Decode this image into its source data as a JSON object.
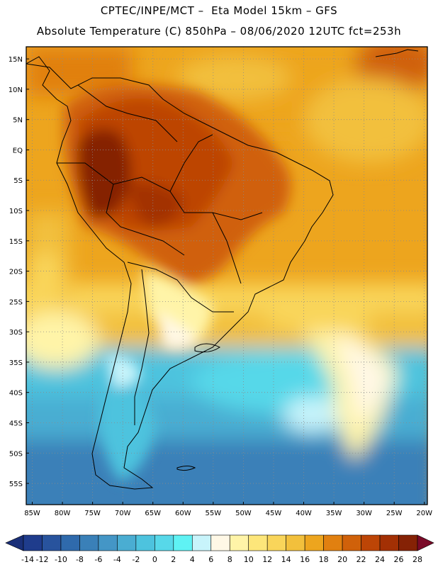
{
  "header": {
    "line1": "CPTEC/INPE/MCT –  Eta Model 15km – GFS",
    "line2": "Absolute Temperature (C) 850hPa – 08/06/2020 12UTC fct=253h"
  },
  "map": {
    "lat_labels": [
      "15N",
      "10N",
      "5N",
      "EQ",
      "5S",
      "10S",
      "15S",
      "20S",
      "25S",
      "30S",
      "35S",
      "40S",
      "45S",
      "50S",
      "55S"
    ],
    "lat_values": [
      15,
      10,
      5,
      0,
      -5,
      -10,
      -15,
      -20,
      -25,
      -30,
      -35,
      -40,
      -45,
      -50,
      -55
    ],
    "lon_labels": [
      "85W",
      "80W",
      "75W",
      "70W",
      "65W",
      "60W",
      "55W",
      "50W",
      "45W",
      "40W",
      "35W",
      "30W",
      "25W",
      "20W"
    ],
    "lon_values": [
      -85,
      -80,
      -75,
      -70,
      -65,
      -60,
      -55,
      -50,
      -45,
      -40,
      -35,
      -30,
      -25,
      -20
    ],
    "lat_range": [
      -58.5,
      17
    ],
    "lon_range": [
      -86,
      -19.5
    ]
  },
  "colorbar": {
    "labels": [
      "-14",
      "-12",
      "-10",
      "-8",
      "-6",
      "-4",
      "-2",
      "0",
      "2",
      "4",
      "6",
      "8",
      "10",
      "12",
      "14",
      "16",
      "18",
      "20",
      "22",
      "24",
      "26",
      "28"
    ],
    "colors": [
      "#1f3c8c",
      "#28539d",
      "#2f6aac",
      "#3a80b8",
      "#4496c6",
      "#4aadd2",
      "#4dc3de",
      "#57d8e9",
      "#5ff2f4",
      "#c8f4fb",
      "#fff8e6",
      "#fff4a8",
      "#fde67a",
      "#f9d55a",
      "#f2c03c",
      "#eda51e",
      "#e18010",
      "#d0610a",
      "#bd4506",
      "#a33004",
      "#852205"
    ],
    "left_arrow_color": "#1a2f78",
    "right_arrow_color": "#7a0a28"
  }
}
